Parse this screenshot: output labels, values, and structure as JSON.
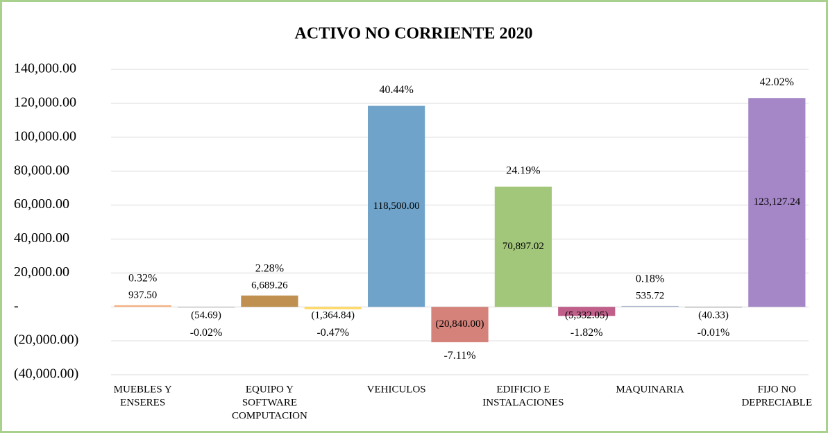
{
  "chart_data": {
    "type": "bar",
    "title": "ACTIVO NO CORRIENTE 2020",
    "categories": [
      [
        "MUEBLES Y",
        "ENSERES"
      ],
      null,
      [
        "EQUIPO Y",
        "SOFTWARE",
        "COMPUTACION"
      ],
      null,
      [
        "VEHICULOS"
      ],
      null,
      [
        "EDIFICIO E",
        "INSTALACIONES"
      ],
      null,
      [
        "MAQUINARIA"
      ],
      null,
      [
        "FIJO NO",
        "DEPRECIABLE"
      ]
    ],
    "values": [
      937.5,
      -54.69,
      6689.26,
      -1364.84,
      118500.0,
      -20840.0,
      70897.02,
      -5332.05,
      535.72,
      -40.33,
      123127.24
    ],
    "value_labels": [
      "937.50",
      "(54.69)",
      "6,689.26",
      "(1,364.84)",
      "118,500.00",
      "(20,840.00)",
      "70,897.02",
      "(5,332.05)",
      "535.72",
      "(40.33)",
      "123,127.24"
    ],
    "percent_labels": [
      "0.32%",
      "-0.02%",
      "2.28%",
      "-0.47%",
      "40.44%",
      "-7.11%",
      "24.19%",
      "-1.82%",
      "0.18%",
      "-0.01%",
      "42.02%"
    ],
    "colors": [
      "#f4b183",
      "#b0b0b0",
      "#bf9050",
      "#ffd966",
      "#70a3c9",
      "#d4827a",
      "#a3c77a",
      "#c0608a",
      "#a9b7cc",
      "#a0a0a0",
      "#a587c7"
    ],
    "ylim": [
      -40000,
      140000
    ],
    "yticks": [
      {
        "value": -40000,
        "label": "(40,000.00)"
      },
      {
        "value": -20000,
        "label": "(20,000.00)"
      },
      {
        "value": 0,
        "label": "-"
      },
      {
        "value": 20000,
        "label": "20,000.00"
      },
      {
        "value": 40000,
        "label": "40,000.00"
      },
      {
        "value": 60000,
        "label": "60,000.00"
      },
      {
        "value": 80000,
        "label": "80,000.00"
      },
      {
        "value": 100000,
        "label": "100,000.00"
      },
      {
        "value": 120000,
        "label": "120,000.00"
      },
      {
        "value": 140000,
        "label": "140,000.00"
      }
    ],
    "grid": true
  }
}
